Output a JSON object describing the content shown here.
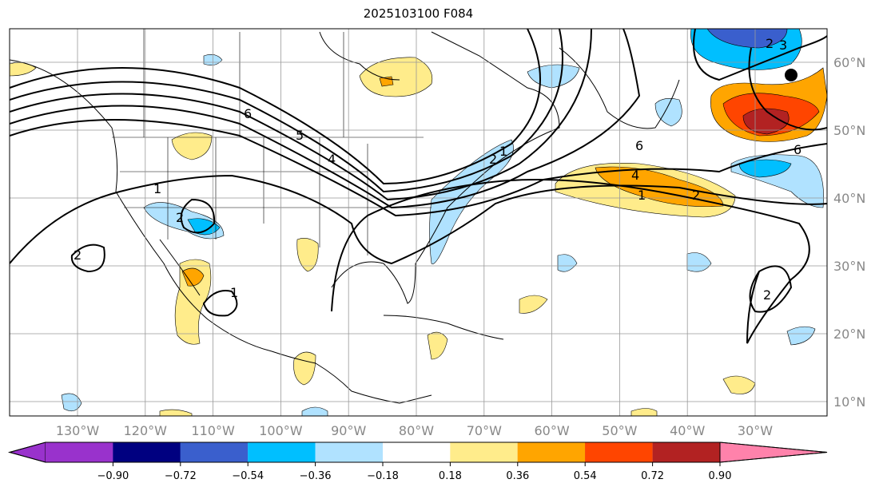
{
  "title": "2025103100 F084",
  "lon_labels": [
    "130°W",
    "120°W",
    "110°W",
    "100°W",
    "90°W",
    "80°W",
    "70°W",
    "60°W",
    "50°W",
    "40°W",
    "30°W"
  ],
  "lat_labels": [
    "60°N",
    "50°N",
    "40°N",
    "30°N",
    "20°N",
    "10°N"
  ],
  "colorbar": {
    "ticks": [
      "−0.90",
      "−0.72",
      "−0.54",
      "−0.36",
      "−0.18",
      "0.18",
      "0.36",
      "0.54",
      "0.72",
      "0.90"
    ],
    "colors": [
      "#9932cc",
      "#000080",
      "#3a5fcd",
      "#00bfff",
      "#b0e2ff",
      "#ffffff",
      "#ffec8b",
      "#ffa500",
      "#ff4500",
      "#b22222",
      "#ff82ab"
    ]
  },
  "contour_labels": [
    "6",
    "5",
    "4",
    "2",
    "1",
    "2",
    "2",
    "1",
    "4",
    "1",
    "2",
    "6",
    "6",
    "2",
    "3",
    "2",
    "1"
  ]
}
